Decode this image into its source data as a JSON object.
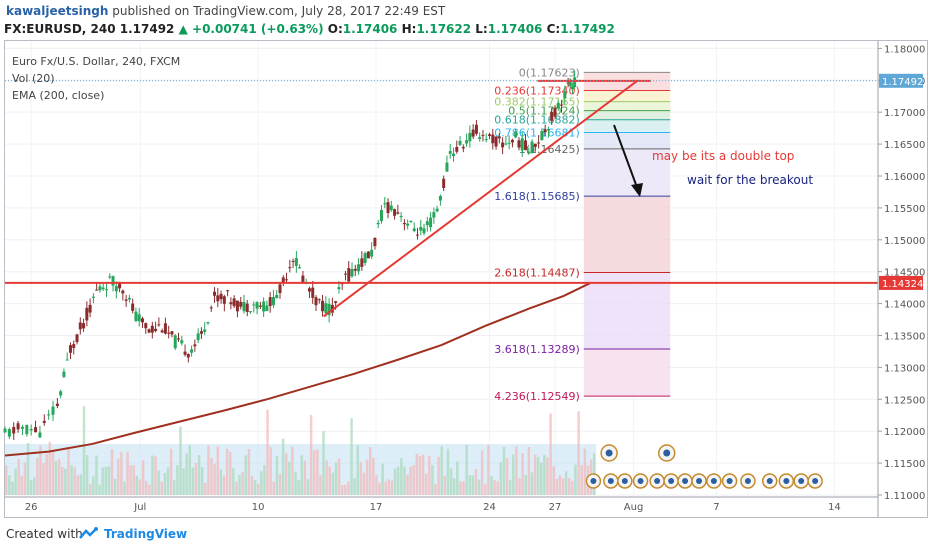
{
  "header": {
    "author": "kawaljeetsingh",
    "published_text": "published on TradingView.com, July 28, 2017 22:49 EST",
    "symbol": "FX:EURUSD, 240",
    "last": "1.17492",
    "change": "+0.00741 (+0.63%)",
    "ohlc": {
      "o": "1.17406",
      "h": "1.17622",
      "l": "1.17406",
      "c": "1.17492"
    },
    "up_arrow": "▲"
  },
  "legend": {
    "title": "Euro Fx/U.S. Dollar, 240, FXCM",
    "volume": "Vol (20)",
    "ema": "EMA (200, close)"
  },
  "footer": {
    "created_with": "Created with",
    "brand": "TradingView"
  },
  "chart_data": {
    "type": "line",
    "title": "Euro Fx/U.S. Dollar, 240, FXCM",
    "ylim": [
      1.11,
      1.181
    ],
    "y_ticks": [
      "1.18000",
      "1.17500",
      "1.17000",
      "1.16500",
      "1.16000",
      "1.15500",
      "1.15000",
      "1.14500",
      "1.14000",
      "1.13500",
      "1.13000",
      "1.12500",
      "1.12000",
      "1.11500",
      "1.11000"
    ],
    "x_tick_labels": [
      "26",
      "Jul",
      "10",
      "17",
      "24",
      "27",
      "Aug",
      "7",
      "14"
    ],
    "price_markers": [
      {
        "label": "1.17492",
        "value": 1.17492,
        "color": "#5fa7d6"
      },
      {
        "label": "1.14324",
        "value": 1.14324,
        "color": "#e53935"
      }
    ],
    "horizontal_line": {
      "value": 1.14324,
      "color": "#e53935"
    },
    "fibonacci": [
      {
        "level": "0(1.17623)",
        "value": 1.17623,
        "color": "#888888"
      },
      {
        "level": "0.236(1.17340)",
        "value": 1.1734,
        "color": "#e53935"
      },
      {
        "level": "0.382(1.17165)",
        "value": 1.17165,
        "color": "#9ccc65"
      },
      {
        "level": "0.5(1.17024)",
        "value": 1.17024,
        "color": "#43a047"
      },
      {
        "level": "0.618(1.16882)",
        "value": 1.16882,
        "color": "#26a69a"
      },
      {
        "level": "0.786(1.16681)",
        "value": 1.16681,
        "color": "#29b6f6"
      },
      {
        "level": "1(1.16425)",
        "value": 1.16425,
        "color": "#666666"
      },
      {
        "level": "1.618(1.15685)",
        "value": 1.15685,
        "color": "#303f9f"
      },
      {
        "level": "2.618(1.14487)",
        "value": 1.14487,
        "color": "#c62828"
      },
      {
        "level": "3.618(1.13289)",
        "value": 1.13289,
        "color": "#7b1fa2"
      },
      {
        "level": "4.236(1.12549)",
        "value": 1.12549,
        "color": "#c2185b"
      }
    ],
    "annotations": [
      {
        "text": "may be its a double top",
        "color": "#e53935"
      },
      {
        "text": "wait for the breakout",
        "color": "#1a237e"
      }
    ],
    "trendline": {
      "from": [
        0.365,
        1.138
      ],
      "to": [
        0.725,
        1.175
      ],
      "color": "#e53935"
    },
    "ema_200": [
      [
        0.0,
        1.1162
      ],
      [
        0.05,
        1.1168
      ],
      [
        0.1,
        1.118
      ],
      [
        0.15,
        1.1198
      ],
      [
        0.2,
        1.1215
      ],
      [
        0.25,
        1.1232
      ],
      [
        0.3,
        1.125
      ],
      [
        0.35,
        1.127
      ],
      [
        0.4,
        1.129
      ],
      [
        0.45,
        1.1312
      ],
      [
        0.5,
        1.1335
      ],
      [
        0.55,
        1.1365
      ],
      [
        0.6,
        1.1392
      ],
      [
        0.64,
        1.1412
      ],
      [
        0.67,
        1.1432
      ]
    ],
    "price_path": [
      [
        0.0,
        1.1195
      ],
      [
        0.02,
        1.1205
      ],
      [
        0.04,
        1.12
      ],
      [
        0.06,
        1.124
      ],
      [
        0.075,
        1.133
      ],
      [
        0.09,
        1.137
      ],
      [
        0.105,
        1.142
      ],
      [
        0.12,
        1.1435
      ],
      [
        0.135,
        1.1425
      ],
      [
        0.15,
        1.138
      ],
      [
        0.165,
        1.136
      ],
      [
        0.18,
        1.1365
      ],
      [
        0.195,
        1.134
      ],
      [
        0.21,
        1.1325
      ],
      [
        0.225,
        1.135
      ],
      [
        0.24,
        1.141
      ],
      [
        0.255,
        1.141
      ],
      [
        0.27,
        1.1395
      ],
      [
        0.285,
        1.14
      ],
      [
        0.3,
        1.1395
      ],
      [
        0.315,
        1.142
      ],
      [
        0.33,
        1.1475
      ],
      [
        0.345,
        1.143
      ],
      [
        0.36,
        1.14
      ],
      [
        0.375,
        1.139
      ],
      [
        0.39,
        1.144
      ],
      [
        0.405,
        1.146
      ],
      [
        0.42,
        1.148
      ],
      [
        0.435,
        1.1555
      ],
      [
        0.45,
        1.1545
      ],
      [
        0.465,
        1.152
      ],
      [
        0.48,
        1.151
      ],
      [
        0.495,
        1.1545
      ],
      [
        0.51,
        1.1635
      ],
      [
        0.525,
        1.165
      ],
      [
        0.54,
        1.167
      ],
      [
        0.555,
        1.166
      ],
      [
        0.57,
        1.165
      ],
      [
        0.585,
        1.166
      ],
      [
        0.6,
        1.164
      ],
      [
        0.615,
        1.1665
      ],
      [
        0.63,
        1.17
      ],
      [
        0.645,
        1.174
      ],
      [
        0.655,
        1.175
      ]
    ]
  }
}
